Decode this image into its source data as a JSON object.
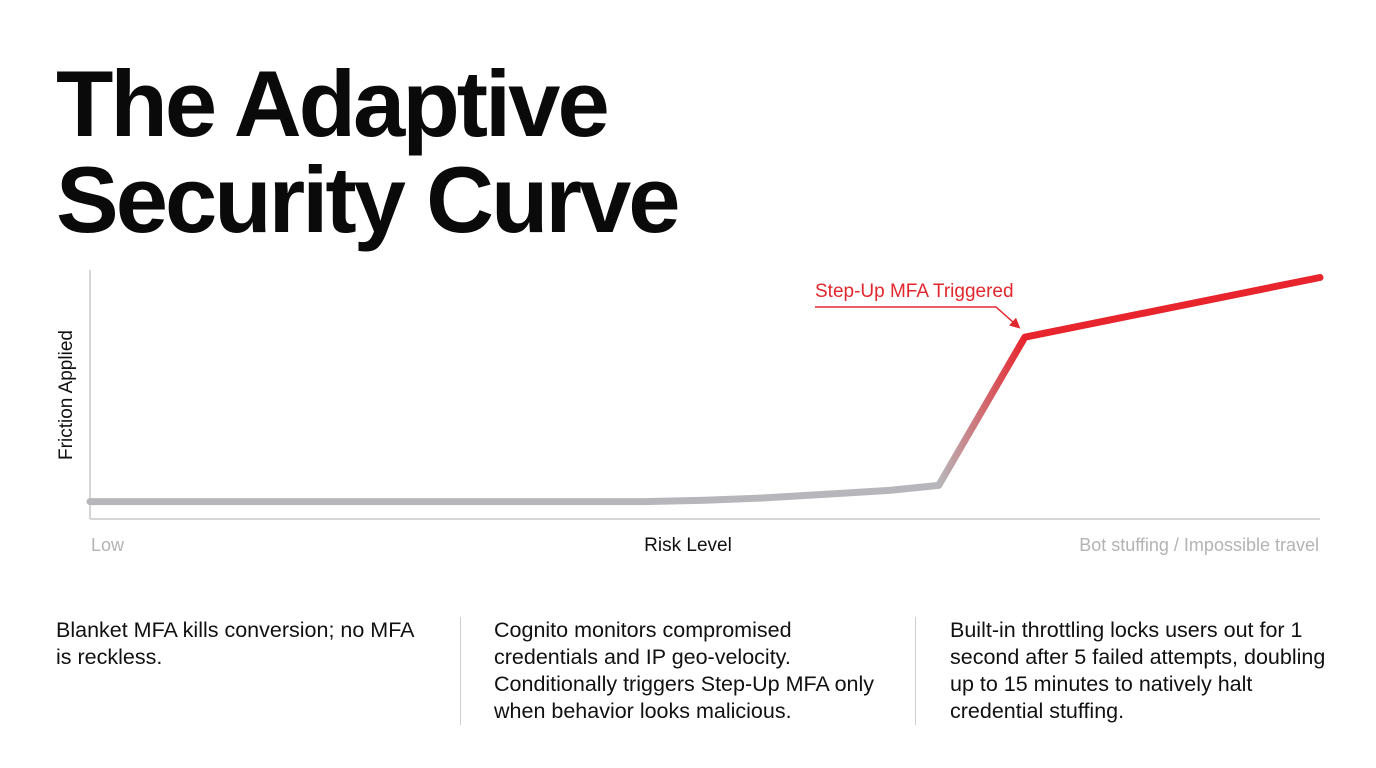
{
  "title": {
    "line1": "The Adaptive",
    "line2": "Security Curve"
  },
  "chart_data": {
    "type": "line",
    "xlabel": "Risk Level",
    "ylabel": "Friction Applied",
    "x_tick_labels": [
      "Low",
      "Bot stuffing / Impossible travel"
    ],
    "xlim": [
      0,
      100
    ],
    "ylim": [
      0,
      100
    ],
    "grid": false,
    "series": [
      {
        "values_x": [
          0,
          20,
          40,
          45,
          50,
          55,
          60,
          65,
          69,
          76,
          100
        ],
        "values_y": [
          7,
          7,
          7,
          7,
          7.5,
          8.5,
          10,
          11.5,
          13.5,
          73,
          97
        ]
      }
    ],
    "colors": {
      "low": "#b7b7bb",
      "high": "#e8242c"
    },
    "annotation": {
      "text": "Step-Up MFA Triggered",
      "x": 76,
      "y": 73
    }
  },
  "columns": [
    {
      "text": "Blanket MFA kills conversion; no MFA is reckless."
    },
    {
      "text": "Cognito monitors compromised credentials and IP geo-velocity. Conditionally triggers Step-Up MFA only when behavior looks malicious."
    },
    {
      "text": "Built-in throttling locks users out for 1 second after 5 failed attempts, doubling up to 15 minutes to natively halt credential stuffing."
    }
  ]
}
